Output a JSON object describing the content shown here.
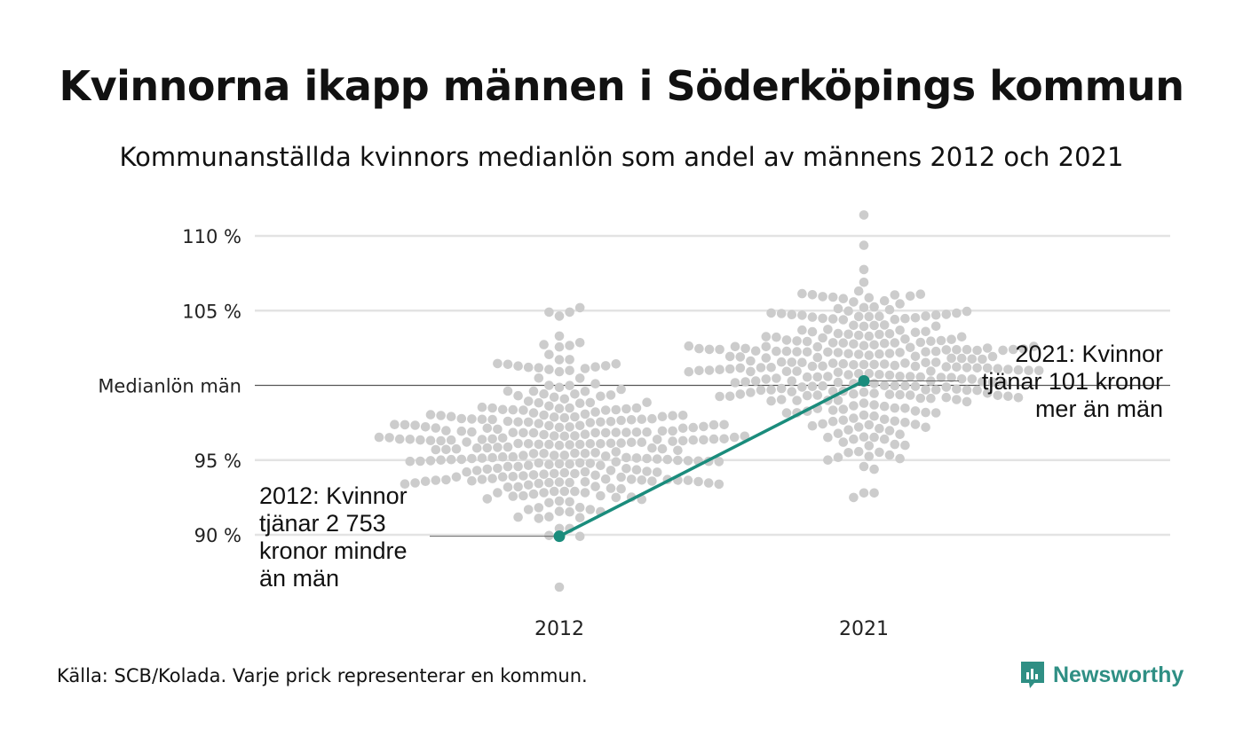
{
  "title": "Kvinnorna ikapp männen i Söderköpings kommun",
  "subtitle": "Kommunanställda kvinnors medianlön som andel av männens 2012 och 2021",
  "source": "Källa: SCB/Kolada. Varje prick representerar en kommun.",
  "brand": "Newsworthy",
  "colors": {
    "highlight": "#1a8c7c",
    "dots": "#cccccc",
    "grid": "#e3e3e3",
    "brand": "#2f8f84"
  },
  "chart_data": {
    "type": "scatter",
    "subtype": "beeswarm",
    "categories": [
      "2012",
      "2021"
    ],
    "y_ticks": [
      {
        "value": 90,
        "label": "90 %"
      },
      {
        "value": 95,
        "label": "95 %"
      },
      {
        "value": 100,
        "label": "Medianlön män"
      },
      {
        "value": 105,
        "label": "105 %"
      },
      {
        "value": 110,
        "label": "110 %"
      }
    ],
    "ylim": [
      87,
      112
    ],
    "reference_line": {
      "value": 100,
      "label": "Medianlön män"
    },
    "highlight": {
      "points": [
        {
          "x": "2012",
          "y": 89.9
        },
        {
          "x": "2021",
          "y": 100.3
        }
      ]
    },
    "annotations": [
      {
        "x": "2012",
        "text": "2012: Kvinnor tjänar 2 753 kronor mindre än män"
      },
      {
        "x": "2021",
        "text": "2021: Kvinnor tjänar 101 kronor mer än män"
      }
    ],
    "distribution": {
      "2012": {
        "min": 86.5,
        "max": 105.2,
        "q1": 94.0,
        "median": 96.0,
        "q3": 98.0
      },
      "2021": {
        "min": 92.5,
        "max": 111.4,
        "q1": 99.5,
        "median": 101.4,
        "q3": 103.0
      }
    }
  }
}
